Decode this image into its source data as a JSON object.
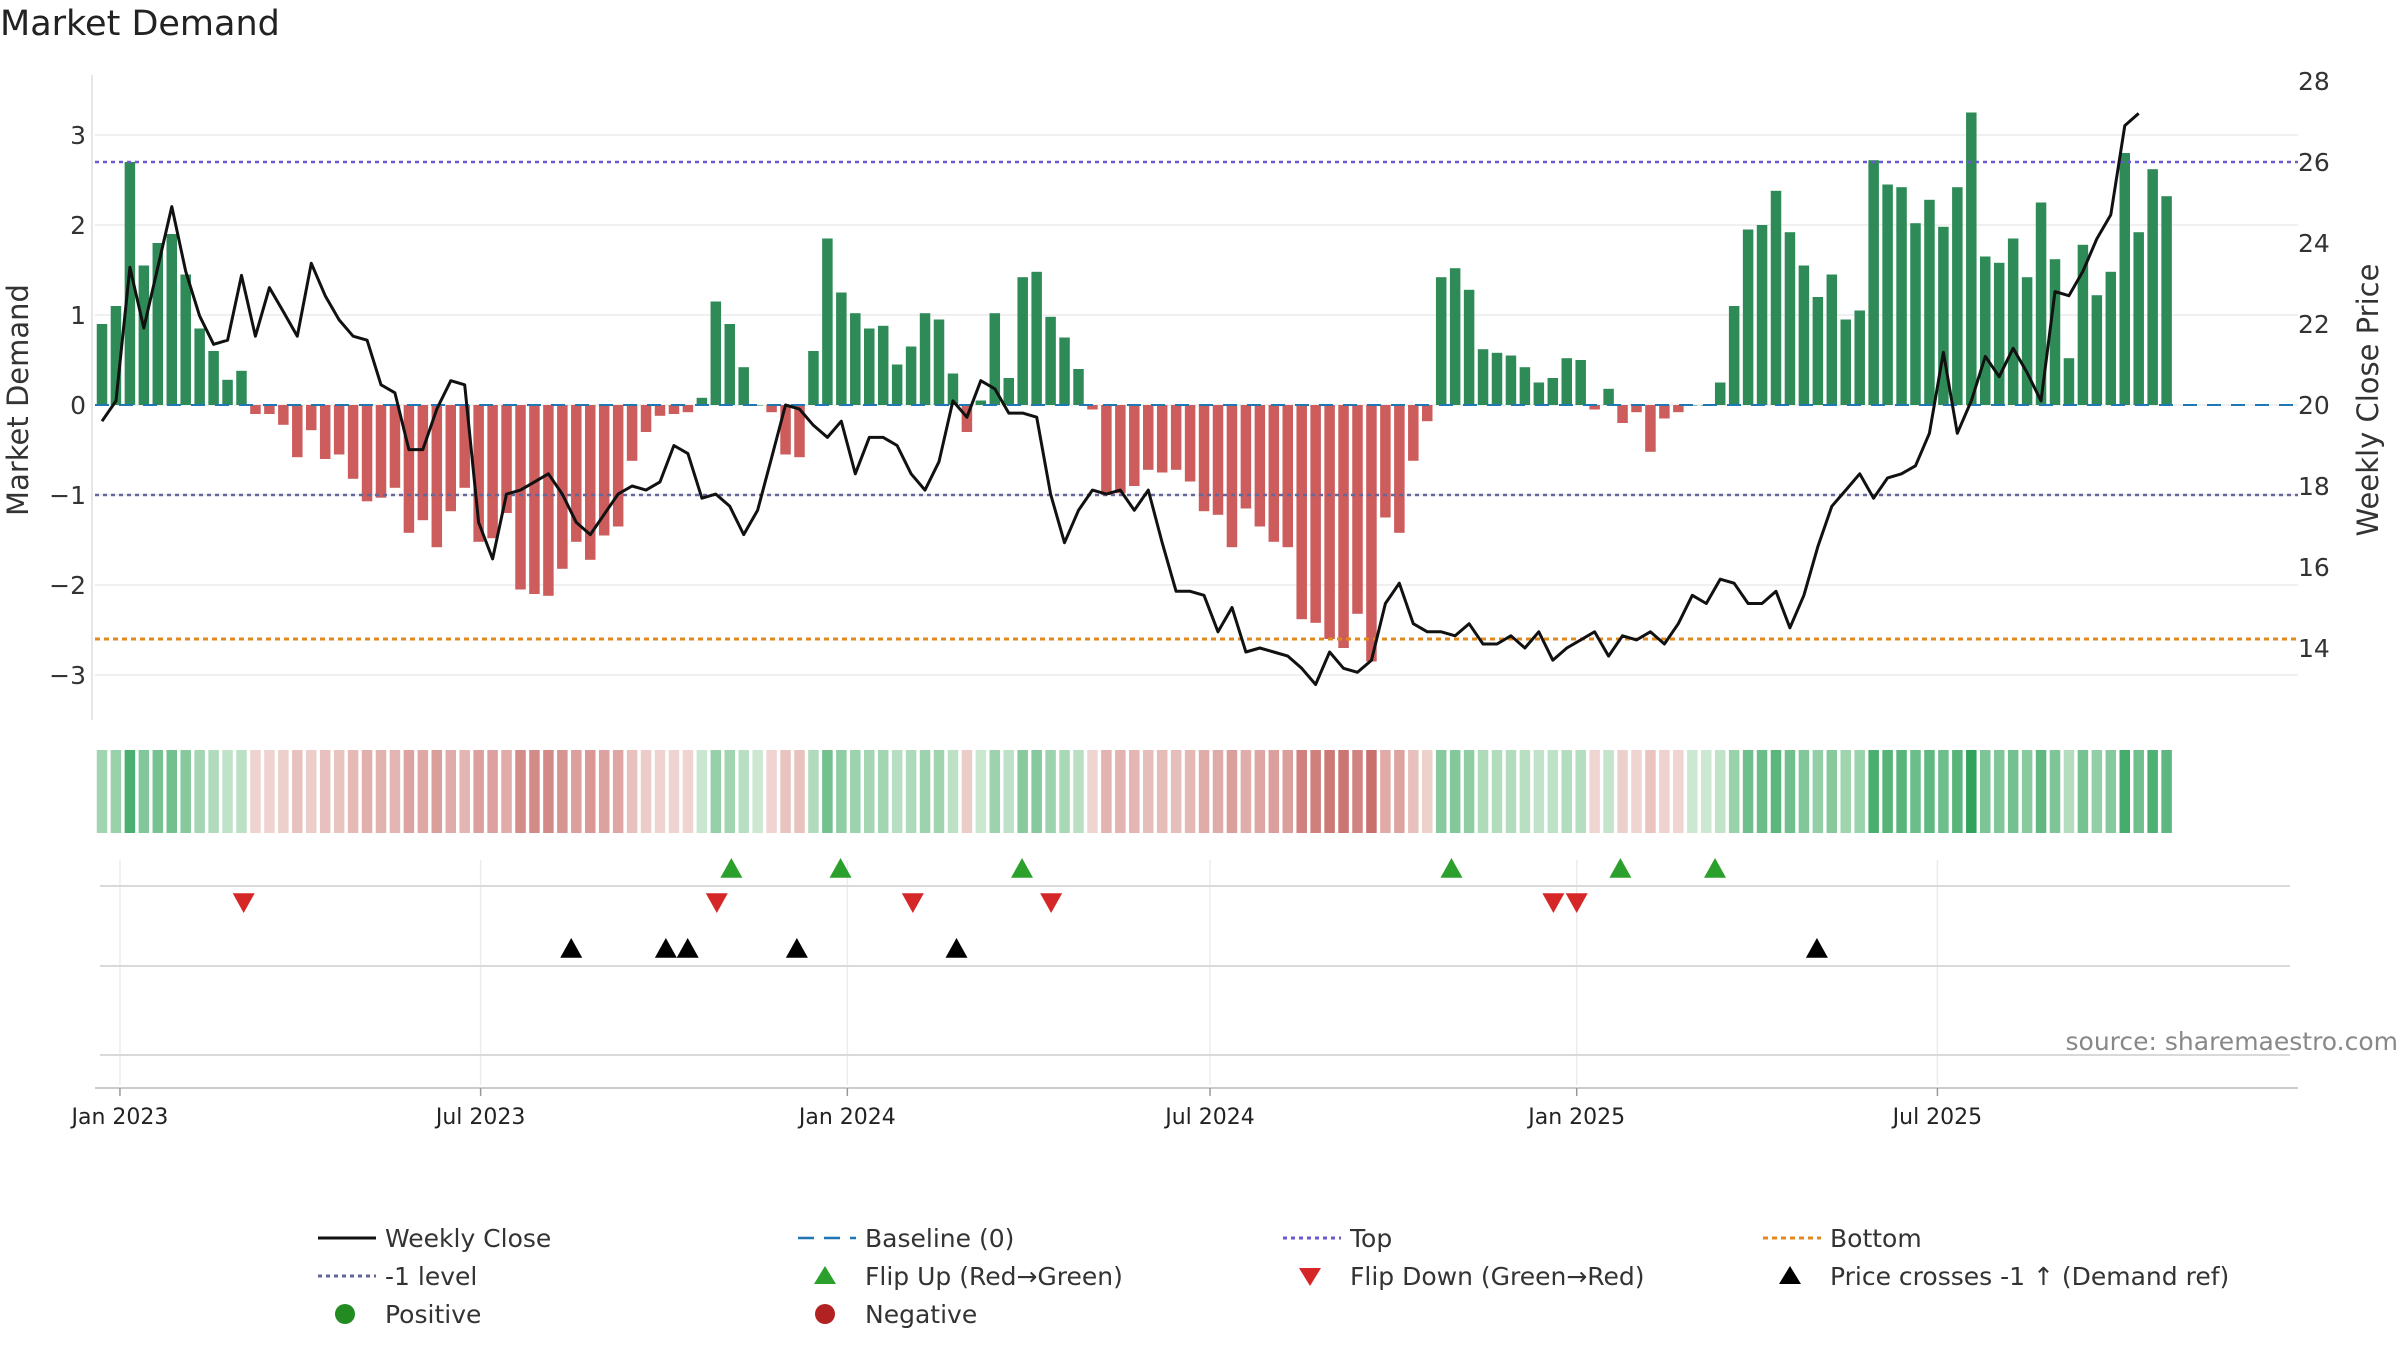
{
  "title": "Market Demand",
  "source_text": "source: sharemaestro.com",
  "colors": {
    "positive_bar": "#2e8b57",
    "negative_bar": "#cd5c5c",
    "line": "#111111",
    "baseline": "#1f77b4",
    "top": "#6a5acd",
    "neg_level": "#666699",
    "bottom": "#e08a1e",
    "flip_up": "#2ca02c",
    "flip_down": "#d62728",
    "cross": "#000000",
    "positive_dot": "#228b22",
    "negative_dot": "#b22222"
  },
  "chart_data": {
    "type": "bar",
    "title": "Market Demand",
    "ylabel": "Market Demand",
    "y2label": "Weekly Close Price",
    "ylim": [
      -3.55,
      3.55
    ],
    "y2lim": [
      12.4,
      28.2
    ],
    "y_ticks": [
      3,
      2,
      1,
      0,
      -1,
      -2,
      -3
    ],
    "y_tick_labels": [
      "3",
      "2",
      "1",
      "0",
      "−1",
      "−2",
      "−3"
    ],
    "y2_ticks": [
      28,
      26,
      24,
      22,
      20,
      18,
      16,
      14
    ],
    "x_start": "2022-12-23",
    "x_step_days": 7,
    "x_ticks": [
      {
        "date": "2023-01-01",
        "label": "Jan 2023"
      },
      {
        "date": "2023-07-01",
        "label": "Jul 2023"
      },
      {
        "date": "2024-01-01",
        "label": "Jan 2024"
      },
      {
        "date": "2024-07-01",
        "label": "Jul 2024"
      },
      {
        "date": "2025-01-01",
        "label": "Jan 2025"
      },
      {
        "date": "2025-07-01",
        "label": "Jul 2025"
      }
    ],
    "reference_lines": [
      {
        "name": "Top",
        "value": 2.7
      },
      {
        "name": "-1 level",
        "value": -1.0
      },
      {
        "name": "Bottom",
        "value": -2.6
      },
      {
        "name": "Baseline (0)",
        "value": 0
      }
    ],
    "series": [
      {
        "name": "Market Demand",
        "values": [
          0.9,
          1.1,
          2.7,
          1.55,
          1.8,
          1.9,
          1.45,
          0.85,
          0.6,
          0.28,
          0.38,
          -0.1,
          -0.1,
          -0.22,
          -0.58,
          -0.28,
          -0.6,
          -0.55,
          -0.82,
          -1.07,
          -1.03,
          -0.92,
          -1.42,
          -1.28,
          -1.58,
          -1.18,
          -0.92,
          -1.52,
          -1.48,
          -1.2,
          -2.05,
          -2.1,
          -2.12,
          -1.82,
          -1.52,
          -1.72,
          -1.45,
          -1.35,
          -0.62,
          -0.3,
          -0.12,
          -0.1,
          -0.08,
          0.08,
          1.15,
          0.9,
          0.42,
          0.0,
          -0.08,
          -0.55,
          -0.58,
          0.6,
          1.85,
          1.25,
          1.02,
          0.85,
          0.88,
          0.45,
          0.65,
          1.02,
          0.95,
          0.35,
          -0.3,
          0.05,
          1.02,
          0.3,
          1.42,
          1.48,
          0.98,
          0.75,
          0.4,
          -0.05,
          -1.0,
          -0.98,
          -0.9,
          -0.72,
          -0.75,
          -0.72,
          -0.85,
          -1.18,
          -1.22,
          -1.58,
          -1.15,
          -1.35,
          -1.52,
          -1.58,
          -2.38,
          -2.42,
          -2.6,
          -2.7,
          -2.32,
          -2.85,
          -1.25,
          -1.42,
          -0.62,
          -0.18,
          1.42,
          1.52,
          1.28,
          0.62,
          0.58,
          0.55,
          0.42,
          0.25,
          0.3,
          0.52,
          0.5,
          -0.05,
          0.18,
          -0.2,
          -0.08,
          -0.52,
          -0.15,
          -0.08,
          0.0,
          0.0,
          0.25,
          1.1,
          1.95,
          2.0,
          2.38,
          1.92,
          1.55,
          1.2,
          1.45,
          0.95,
          1.05,
          2.72,
          2.45,
          2.42,
          2.02,
          2.28,
          1.98,
          2.42,
          3.25,
          1.65,
          1.58,
          1.85,
          1.42,
          2.25,
          1.62,
          0.52,
          1.78,
          1.22,
          1.48,
          2.8,
          1.92,
          2.62,
          2.32
        ]
      },
      {
        "name": "Weekly Close",
        "values": [
          19.6,
          20.1,
          23.4,
          21.9,
          23.4,
          24.9,
          23.3,
          22.2,
          21.5,
          21.6,
          23.2,
          21.7,
          22.9,
          22.3,
          21.7,
          23.5,
          22.7,
          22.1,
          21.7,
          21.6,
          20.5,
          20.3,
          18.9,
          18.9,
          19.9,
          20.6,
          20.5,
          17.1,
          16.2,
          17.8,
          17.9,
          18.1,
          18.3,
          17.8,
          17.1,
          16.8,
          17.3,
          17.8,
          18.0,
          17.9,
          18.1,
          19.0,
          18.8,
          17.7,
          17.8,
          17.5,
          16.8,
          17.4,
          18.7,
          20.0,
          19.9,
          19.5,
          19.2,
          19.6,
          18.3,
          19.2,
          19.2,
          19.0,
          18.3,
          17.9,
          18.6,
          20.1,
          19.7,
          20.6,
          20.4,
          19.8,
          19.8,
          19.7,
          17.8,
          16.6,
          17.4,
          17.9,
          17.8,
          17.9,
          17.4,
          17.9,
          16.6,
          15.4,
          15.4,
          15.3,
          14.4,
          15.0,
          13.9,
          14.0,
          13.9,
          13.8,
          13.5,
          13.1,
          13.9,
          13.5,
          13.4,
          13.7,
          15.1,
          15.6,
          14.6,
          14.4,
          14.4,
          14.3,
          14.6,
          14.1,
          14.1,
          14.3,
          14.0,
          14.4,
          13.7,
          14.0,
          14.2,
          14.4,
          13.8,
          14.3,
          14.2,
          14.4,
          14.1,
          14.6,
          15.3,
          15.1,
          15.7,
          15.6,
          15.1,
          15.1,
          15.4,
          14.5,
          15.3,
          16.5,
          17.5,
          17.9,
          18.3,
          17.7,
          18.2,
          18.3,
          18.5,
          19.3,
          21.3,
          19.3,
          20.1,
          21.2,
          20.7,
          21.4,
          20.8,
          20.1,
          22.8,
          22.7,
          23.3,
          24.1,
          24.7,
          26.9,
          27.2
        ]
      }
    ],
    "heatmap_strip": {
      "description_values_from": "Market Demand"
    },
    "markers": {
      "flip_up": [
        2023.84,
        2023.99,
        2024.24,
        2024.83,
        2025.06,
        2025.19
      ],
      "flip_down": [
        2023.17,
        2023.82,
        2024.09,
        2024.28,
        2024.97,
        2025.0
      ],
      "price_crosses": [
        2023.62,
        2023.75,
        2023.78,
        2023.93,
        2024.15,
        2025.33
      ]
    },
    "legend": [
      {
        "label": "Weekly Close",
        "symbol": "line"
      },
      {
        "label": "Baseline (0)",
        "symbol": "dash"
      },
      {
        "label": "Top",
        "symbol": "dotted-top"
      },
      {
        "label": "Bottom",
        "symbol": "dotted-bottom"
      },
      {
        "label": "-1 level",
        "symbol": "dotted-neg"
      },
      {
        "label": "Flip Up (Red→Green)",
        "symbol": "tri-up-green"
      },
      {
        "label": "Flip Down (Green→Red)",
        "symbol": "tri-down-red"
      },
      {
        "label": "Price crosses -1 ↑ (Demand ref)",
        "symbol": "tri-up-black"
      },
      {
        "label": "Positive",
        "symbol": "dot-green"
      },
      {
        "label": "Negative",
        "symbol": "dot-red"
      }
    ]
  }
}
